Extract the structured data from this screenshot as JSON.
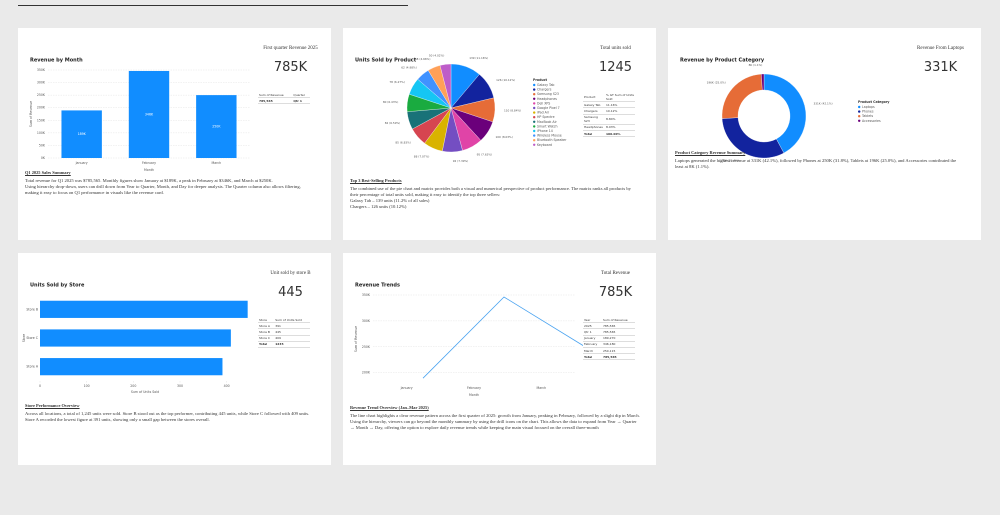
{
  "chart_data": [
    {
      "type": "bar",
      "title": "Revenue by Month",
      "x_label": "Month",
      "y_label": "Sum of Revenue",
      "categories": [
        "January",
        "February",
        "March"
      ],
      "values": [
        189.27,
        346.18,
        250.115
      ],
      "value_labels": [
        "189K",
        "346K",
        "250K"
      ],
      "color": "#118DFF",
      "ylim": [
        0,
        350
      ],
      "yticks": [
        {
          "value": 0,
          "label": "0K"
        },
        {
          "value": 50,
          "label": "50K"
        },
        {
          "value": 100,
          "label": "100K"
        },
        {
          "value": 150,
          "label": "150K"
        },
        {
          "value": 200,
          "label": "200K"
        },
        {
          "value": 250,
          "label": "250K"
        },
        {
          "value": 300,
          "label": "300K"
        },
        {
          "value": 350,
          "label": "350K"
        }
      ],
      "grid": true
    },
    {
      "type": "pie",
      "title": "Units Sold by Product",
      "legend_title": "Product",
      "categories": [
        "Galaxy Tab",
        "Chargers",
        "Samsung S23",
        "Headphones",
        "Dell XPS",
        "Google Pixel 7",
        "iPad Air",
        "HP Spectre",
        "MacBook Air",
        "Smart Watch",
        "iPhone 14",
        "Wireless Mouse",
        "Bluetooth Speaker",
        "Keyboard"
      ],
      "values": [
        139,
        126,
        110,
        100,
        95,
        92,
        88,
        85,
        82,
        80,
        78,
        62,
        58,
        50
      ],
      "value_labels": [
        "139 (11.16%)",
        "126 (10.12%)",
        "110 (8.84%)",
        "100 (8.03%)",
        "95 (7.63%)",
        "92 (7.39%)",
        "88 (7.07%)",
        "85 (6.83%)",
        "82 (6.59%)",
        "80 (6.43%)",
        "78 (6.27%)",
        "62 (4.98%)",
        "58 (4.66%)",
        "50 (4.02%)"
      ],
      "colors": [
        "#118DFF",
        "#12239E",
        "#E66C37",
        "#6B007B",
        "#E044A7",
        "#744EC2",
        "#D9B300",
        "#D64550",
        "#197278",
        "#1AAB40",
        "#15C6F4",
        "#4092FF",
        "#FFA058",
        "#BE5DC9"
      ]
    },
    {
      "type": "donut",
      "title": "Revenue by Product Category",
      "legend_title": "Product Category",
      "categories": [
        "Laptops",
        "Phones",
        "Tablets",
        "Accessories"
      ],
      "values": [
        331,
        250,
        196,
        8
      ],
      "value_labels": [
        "331K (42.1%)",
        "250K (31.8%)",
        "196K (25.0%)",
        "8K (1.1%)"
      ],
      "colors": [
        "#118DFF",
        "#12239E",
        "#E66C37",
        "#6B007B"
      ]
    },
    {
      "type": "hbar",
      "title": "Units Sold by Store",
      "x_label": "Sum of Units Sold",
      "y_label": "Store",
      "categories": [
        "Store B",
        "Store C",
        "Store A"
      ],
      "values": [
        445,
        409,
        391
      ],
      "color": "#118DFF",
      "xlim": [
        0,
        450
      ],
      "xticks": [
        0,
        100,
        200,
        300,
        400
      ]
    },
    {
      "type": "line",
      "title": "Revenue Trends",
      "x_label": "Month",
      "y_label": "Sum of Revenue",
      "categories": [
        "January",
        "February",
        "March"
      ],
      "values": [
        189.27,
        346.18,
        250.115
      ],
      "color": "#4AA3F0",
      "ylim": [
        180,
        350
      ],
      "yticks": [
        {
          "value": 200,
          "label": "200K"
        },
        {
          "value": 250,
          "label": "250K"
        },
        {
          "value": 300,
          "label": "300K"
        },
        {
          "value": 350,
          "label": "350K"
        }
      ],
      "grid": true
    }
  ],
  "cards": [
    {
      "kpi_label": "First quarter Revenue 2025",
      "kpi_value": "785K",
      "table": {
        "headers": [
          "Sum of Revenue",
          "Quarter"
        ],
        "rows": [
          [
            "785,565",
            "Qtr 1"
          ]
        ]
      },
      "summary": {
        "title": "Q1 2025 Sales Summary",
        "paragraphs": [
          "Total revenue for Q1 2025 was $785,565. Monthly figures show January at $189K, a peak in February at $346K, and March at $250K.",
          "Using hierarchy drop-down, users can drill down from Year to Quarter, Month, and Day for deeper analysis. The Quarter column also allows filtering, making it easy to focus on Q1 performance in visuals like the revenue card."
        ]
      }
    },
    {
      "kpi_label": "Total units sold",
      "kpi_value": "1245",
      "table": {
        "headers": [
          "Product",
          "% GT Sum of Units Sold"
        ],
        "rows": [
          [
            "Galaxy Tab",
            "11.16%"
          ],
          [
            "Chargers",
            "10.12%"
          ],
          [
            "Samsung S23",
            "8.84%"
          ],
          [
            "Headphones",
            "8.03%"
          ],
          [
            "Total",
            "100.00%"
          ]
        ]
      },
      "summary": {
        "title": "Top 3 Best-Selling Products",
        "paragraphs": [
          "The combined use of the pie chart and matrix provides both a visual and numerical perspective of product performance. The matrix ranks all products by their percentage of total units sold, making it easy to identify the top three sellers:",
          "Galaxy Tab – 139 units (11.2% of all sales)",
          "Chargers – 126 units (10.12%)"
        ]
      }
    },
    {
      "kpi_label": "Revenue From Laptops",
      "kpi_value": "331K",
      "summary": {
        "title": "Product Category Revenue Summary",
        "paragraphs": [
          "Laptops generated the highest revenue at 331K (42.1%), followed by Phones at 250K (31.8%), Tablets at 196K (25.0%), and Accessories contributed the least at 8K (1.1%)."
        ]
      }
    },
    {
      "kpi_label": "Unit sold by store B",
      "kpi_value": "445",
      "table": {
        "headers": [
          "Store",
          "Sum of Units Sold"
        ],
        "rows": [
          [
            "Store A",
            "391"
          ],
          [
            "Store B",
            "445"
          ],
          [
            "Store C",
            "409"
          ],
          [
            "Total",
            "1245"
          ]
        ]
      },
      "summary": {
        "title": "Store Performance Overview",
        "paragraphs": [
          "Across all locations, a total of 1,245 units were sold. Store B stood out as the top performer, contributing 445 units, while Store C followed with 409 units. Store A recorded the lowest figure at 391 units, showing only a small gap between the stores overall."
        ]
      }
    },
    {
      "kpi_label": "Total Revenue",
      "kpi_value": "785K",
      "table": {
        "headers": [
          "Year",
          "Sum of Revenue"
        ],
        "rows": [
          [
            "2025",
            "785,565"
          ],
          [
            "Qtr 1",
            "785,565"
          ],
          [
            "January",
            "189,270"
          ],
          [
            "February",
            "346,180"
          ],
          [
            "March",
            "250,115"
          ],
          [
            "Total",
            "785,565"
          ]
        ]
      },
      "summary": {
        "title": "Revenue Trend Overview (Jan–Mar 2025)",
        "paragraphs": [
          "The line chart highlights a clear revenue pattern across the first quarter of 2025: growth from January, peaking in February, followed by a slight dip in March.",
          "Using the hierarchy, viewers can go beyond the monthly summary by using the drill icons on the chart. This allows the data to expand from Year → Quarter → Month → Day, offering the option to explore daily revenue trends while keeping the main visual focused on the overall three-month"
        ]
      }
    }
  ]
}
